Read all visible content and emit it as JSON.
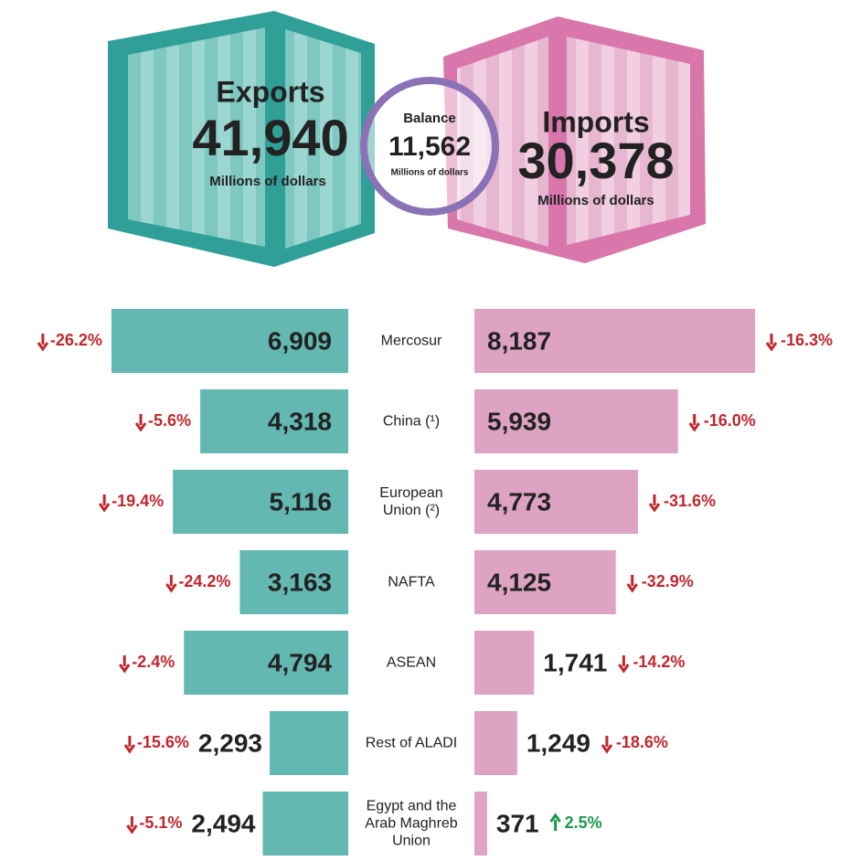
{
  "header": {
    "exports": {
      "label": "Exports",
      "value": "41,940",
      "unit": "Millions of dollars"
    },
    "balance": {
      "label": "Balance",
      "value": "11,562",
      "unit": "Millions of dollars"
    },
    "imports": {
      "label": "Imports",
      "value": "30,378",
      "unit": "Millions of dollars"
    }
  },
  "chart_data": {
    "type": "butterfly-bar",
    "categories": [
      "Mercosur",
      "China (¹)",
      "European Union (²)",
      "NAFTA",
      "ASEAN",
      "Rest of ALADI",
      "Egypt and the Arab Maghreb Union"
    ],
    "series": [
      {
        "color": "#63b9b2",
        "values": [
          6909,
          4318,
          5116,
          3163,
          4794,
          2293,
          2494
        ],
        "value_labels": [
          "6,909",
          "4,318",
          "5,116",
          "3,163",
          "4,794",
          "2,293",
          "2,494"
        ],
        "changes": [
          -26.2,
          -5.6,
          -19.4,
          -24.2,
          -2.4,
          -15.6,
          -5.1
        ],
        "change_labels": [
          "-26.2%",
          "-5.6%",
          "-19.4%",
          "-24.2%",
          "-2.4%",
          "-15.6%",
          "-5.1%"
        ]
      },
      {
        "color": "#dea3c3",
        "values": [
          8187,
          5939,
          4773,
          4125,
          1741,
          1249,
          371
        ],
        "value_labels": [
          "8,187",
          "5,939",
          "4,773",
          "4,125",
          "1,741",
          "1,249",
          "371"
        ],
        "changes": [
          -16.3,
          -16.0,
          -31.6,
          -32.9,
          -14.2,
          -18.6,
          2.5
        ],
        "change_labels": [
          "-16.3%",
          "-16.0%",
          "-31.6%",
          "-32.9%",
          "-14.2%",
          "-18.6%",
          "2.5%"
        ]
      }
    ]
  }
}
